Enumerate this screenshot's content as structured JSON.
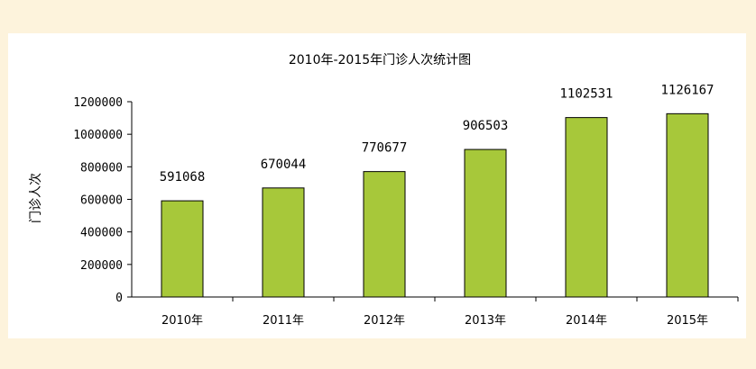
{
  "chart_data": {
    "type": "bar",
    "title": "2010年-2015年门诊人次统计图",
    "xlabel": "",
    "ylabel": "门诊人次",
    "categories": [
      "2010年",
      "2011年",
      "2012年",
      "2013年",
      "2014年",
      "2015年"
    ],
    "values": [
      591068,
      670044,
      770677,
      906503,
      1102531,
      1126167
    ],
    "data_labels": [
      "591068",
      "670044",
      "770677",
      "906503",
      "1102531",
      "1126167"
    ],
    "ylim": [
      0,
      1200000
    ],
    "yticks": [
      0,
      200000,
      400000,
      600000,
      800000,
      1000000,
      1200000
    ],
    "ytick_labels": [
      "0",
      "200000",
      "400000",
      "600000",
      "800000",
      "1000000",
      "1200000"
    ],
    "grid": false,
    "legend": "none",
    "colors": {
      "bar_fill": "#a7c83a",
      "bar_stroke": "#000000",
      "background": "#fdf3dc",
      "panel": "#ffffff"
    }
  }
}
